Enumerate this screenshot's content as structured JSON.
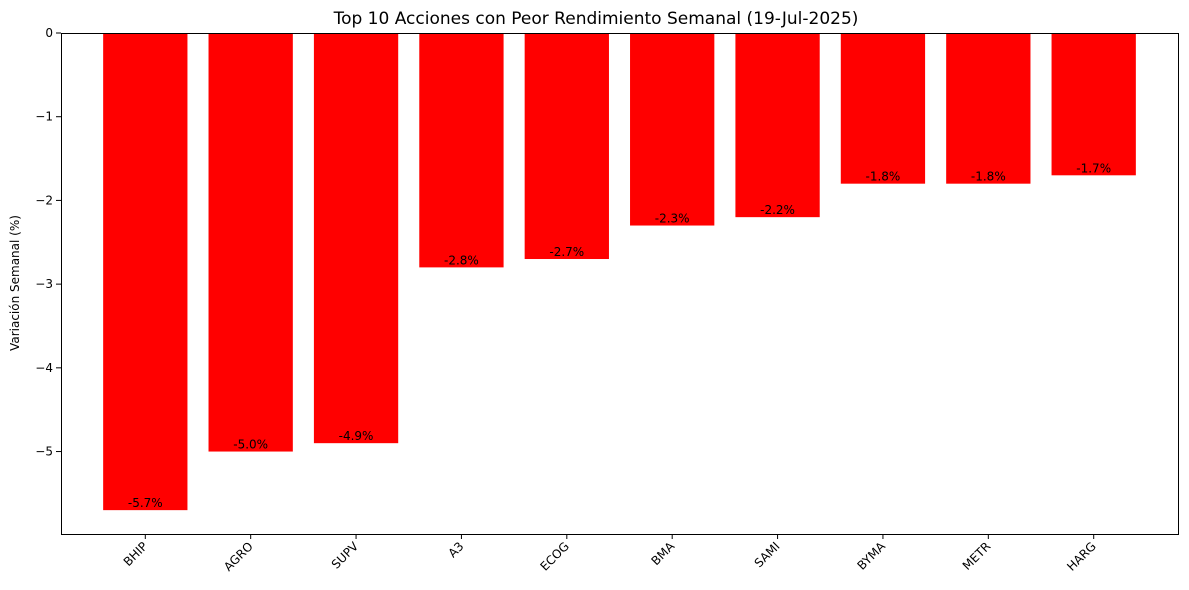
{
  "chart_data": {
    "type": "bar",
    "title": "Top 10 Acciones con Peor Rendimiento Semanal (19-Jul-2025)",
    "xlabel": "",
    "ylabel": "Variación Semanal (%)",
    "categories": [
      "BHIP",
      "AGRO",
      "SUPV",
      "A3",
      "ECOG",
      "BMA",
      "SAMI",
      "BYMA",
      "METR",
      "HARG"
    ],
    "values": [
      -5.7,
      -5.0,
      -4.9,
      -2.8,
      -2.7,
      -2.3,
      -2.2,
      -1.8,
      -1.8,
      -1.7
    ],
    "data_labels": [
      "-5.7%",
      "-5.0%",
      "-4.9%",
      "-2.8%",
      "-2.7%",
      "-2.3%",
      "-2.2%",
      "-1.8%",
      "-1.8%",
      "-1.7%"
    ],
    "yticks": [
      0,
      -1,
      -2,
      -3,
      -4,
      -5
    ],
    "ytick_labels": [
      "0",
      "−1",
      "−2",
      "−3",
      "−4",
      "−5"
    ],
    "ylim": [
      -5.985,
      0
    ],
    "bar_color": "#ff0000",
    "grid": false,
    "legend": "none"
  }
}
